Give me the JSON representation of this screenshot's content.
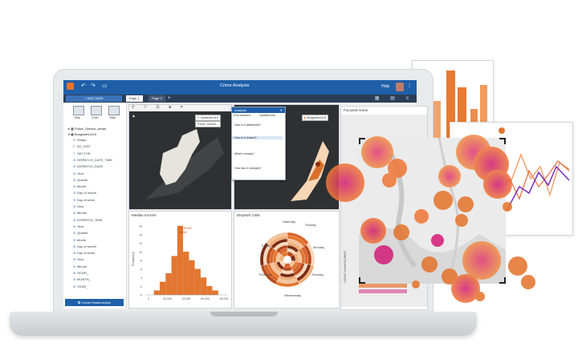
{
  "app": {
    "title": "Crime Analysis",
    "help": "Help",
    "add_data": "+ ADD DATA",
    "tabs": [
      {
        "label": "Page 1",
        "active": true
      },
      {
        "label": "Page 2",
        "active": false
      }
    ],
    "tab_add": "+"
  },
  "data_pane": {
    "viz_types": [
      "Map",
      "Chart",
      "Table"
    ],
    "datasets": [
      "Police_Service_Areas",
      "Burglaries1415"
    ],
    "fields": [
      "Shape",
      "DC_DIST",
      "SECTOR",
      "DISPATCH_DATE_TIME",
      "DISPATCH_DATE",
      "Year",
      "Quarter",
      "Month",
      "Day of month",
      "Day of week",
      "Hour",
      "Minute",
      "DISPATCH_TIME",
      "Year",
      "Quarter",
      "Month",
      "Day of month",
      "Day of week",
      "Hour",
      "Minute",
      "HOUR_",
      "MONTH_",
      "YEAR_"
    ],
    "create_relationships": "Create Relationships"
  },
  "cards": {
    "map1_legend": "Incidents1415",
    "map1_legend2": "Police_Service...",
    "map2_legend": "Burglaries1415",
    "median_income": {
      "title": "Median Income",
      "ylabel": "Frequency",
      "yticks": [
        "16",
        "14",
        "12",
        "10",
        "8",
        "6",
        "4",
        "2",
        "0"
      ],
      "xticks": [
        "0",
        "20,000",
        "40,000",
        "60,000",
        "80,000"
      ],
      "annotation1": "x = 28,419",
      "annotation2": "36,902"
    },
    "dispatch_calls": {
      "title": "Dispatch Calls",
      "days": [
        "Saturday",
        "Sunday",
        "Friday",
        "Monday",
        "Thursday",
        "Tuesday",
        "Wednesday"
      ],
      "side_labels": [
        "SUM",
        "SECTOR"
      ]
    },
    "crimes": {
      "title": "Crimes by",
      "side_label": "COUNT of BURGLARIES",
      "month_label": "January"
    },
    "focused": {
      "title": "Focused Areas",
      "legend": "Count"
    }
  },
  "analysis_panel": {
    "title": "Analysis",
    "tabs": [
      "Find answers",
      "Spatial tools"
    ],
    "questions": [
      "How is it distributed?",
      "How is it related?",
      "What's nearby?",
      "How has it changed?"
    ]
  },
  "chart_data": {
    "type": "bar",
    "title": "Median Income",
    "ylabel": "Frequency",
    "xlabel": "",
    "categories": [
      "10,000",
      "15,000",
      "20,000",
      "25,000",
      "30,000",
      "35,000",
      "40,000",
      "45,000",
      "50,000",
      "55,000",
      "60,000"
    ],
    "values": [
      1,
      3,
      5,
      9,
      16,
      10,
      8,
      6,
      4,
      2,
      1
    ],
    "ylim": [
      0,
      16
    ]
  },
  "colors": {
    "brand": "#1e5fa8",
    "orange": "#e4762f",
    "magenta": "#d3217a",
    "purple": "#7b2fbf"
  }
}
